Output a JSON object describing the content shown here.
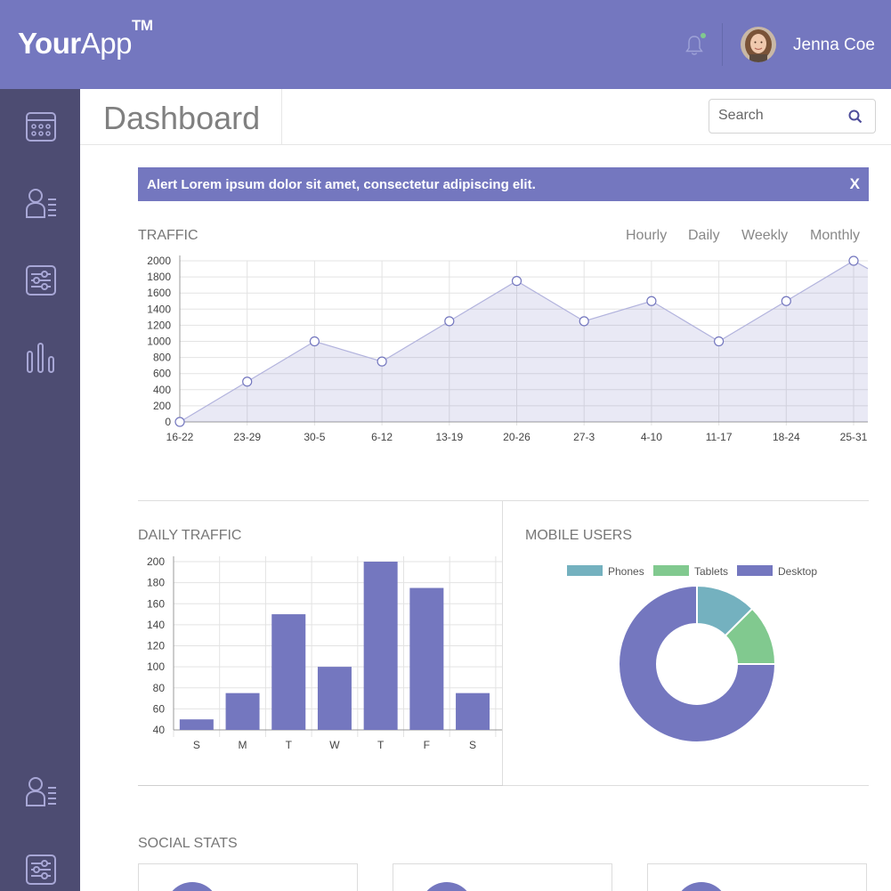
{
  "header": {
    "logo_bold": "Your",
    "logo_thin": "App",
    "logo_tm": "TM",
    "user_name": "Jenna Coe"
  },
  "colors": {
    "accent": "#7477bf",
    "sidebar": "#4d4c72",
    "phones": "#74b1bf",
    "tablets": "#81c98f",
    "desktop": "#7477bf"
  },
  "sidebar": {
    "top_items": [
      {
        "icon": "calendar-icon"
      },
      {
        "icon": "users-icon"
      },
      {
        "icon": "sliders-icon"
      },
      {
        "icon": "bar-chart-icon"
      }
    ],
    "bottom_items": [
      {
        "icon": "users-icon"
      },
      {
        "icon": "sliders-icon"
      }
    ]
  },
  "page": {
    "title": "Dashboard",
    "search_placeholder": "Search"
  },
  "alert": {
    "text": "Alert Lorem ipsum dolor sit amet, consectetur adipiscing elit.",
    "close_label": "X"
  },
  "traffic": {
    "title": "TRAFFIC",
    "tabs": [
      "Hourly",
      "Daily",
      "Weekly",
      "Monthly"
    ]
  },
  "daily_traffic": {
    "title": "DAILY TRAFFIC"
  },
  "mobile_users": {
    "title": "MOBILE USERS"
  },
  "social_stats": {
    "title": "SOCIAL STATS"
  },
  "chart_data": [
    {
      "type": "area",
      "x": [
        "16-22",
        "23-29",
        "30-5",
        "6-12",
        "13-19",
        "20-26",
        "27-3",
        "4-10",
        "11-17",
        "18-24",
        "25-31"
      ],
      "values": [
        0,
        500,
        1000,
        750,
        1250,
        1750,
        1250,
        1500,
        1000,
        1500,
        2000
      ],
      "ylim": [
        0,
        2000
      ],
      "yticks": [
        0,
        200,
        400,
        600,
        800,
        1000,
        1200,
        1400,
        1600,
        1800,
        2000
      ],
      "grid": true
    },
    {
      "type": "bar",
      "categories": [
        "S",
        "M",
        "T",
        "W",
        "T",
        "F",
        "S"
      ],
      "values": [
        50,
        75,
        150,
        100,
        200,
        175,
        75
      ],
      "ylim": [
        40,
        200
      ],
      "yticks": [
        40,
        60,
        80,
        100,
        120,
        140,
        160,
        180,
        200
      ],
      "grid": true
    },
    {
      "type": "pie",
      "labels": [
        "Phones",
        "Tablets",
        "Desktop"
      ],
      "values": [
        12.5,
        12.5,
        75
      ],
      "donut": true,
      "legend": "top"
    }
  ]
}
